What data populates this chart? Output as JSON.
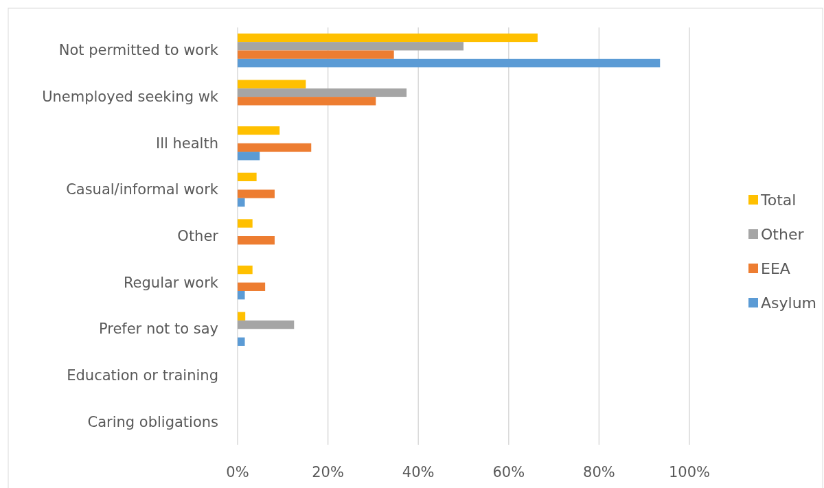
{
  "chart_data": {
    "type": "bar",
    "orientation": "horizontal",
    "categories": [
      "Not permitted to work",
      "Unemployed seeking wk",
      "Ill health",
      "Casual/informal work",
      "Other",
      "Regular work",
      "Prefer not to say",
      "Education or training",
      "Caring obligations"
    ],
    "series": [
      {
        "name": "Total",
        "color": "#ffc000",
        "values": [
          66.4,
          15.1,
          9.3,
          4.2,
          3.3,
          3.3,
          1.7,
          0,
          0
        ]
      },
      {
        "name": "Other",
        "color": "#a5a5a5",
        "values": [
          50.0,
          37.4,
          0,
          0,
          0,
          0,
          12.5,
          0,
          0
        ]
      },
      {
        "name": "EEA",
        "color": "#ed7d31",
        "values": [
          34.6,
          30.6,
          16.3,
          8.2,
          8.2,
          6.1,
          0,
          0,
          0
        ]
      },
      {
        "name": "Asylum",
        "color": "#5b9bd5",
        "values": [
          93.5,
          0,
          4.9,
          1.6,
          0,
          1.6,
          1.6,
          0,
          0
        ]
      }
    ],
    "xlim": [
      0,
      100
    ],
    "xticks": [
      {
        "value": 0,
        "label": "0%"
      },
      {
        "value": 20,
        "label": "20%"
      },
      {
        "value": 40,
        "label": "40%"
      },
      {
        "value": 60,
        "label": "60%"
      },
      {
        "value": 80,
        "label": "80%"
      },
      {
        "value": 100,
        "label": "100%"
      }
    ],
    "grid": "x",
    "legend": "right"
  }
}
